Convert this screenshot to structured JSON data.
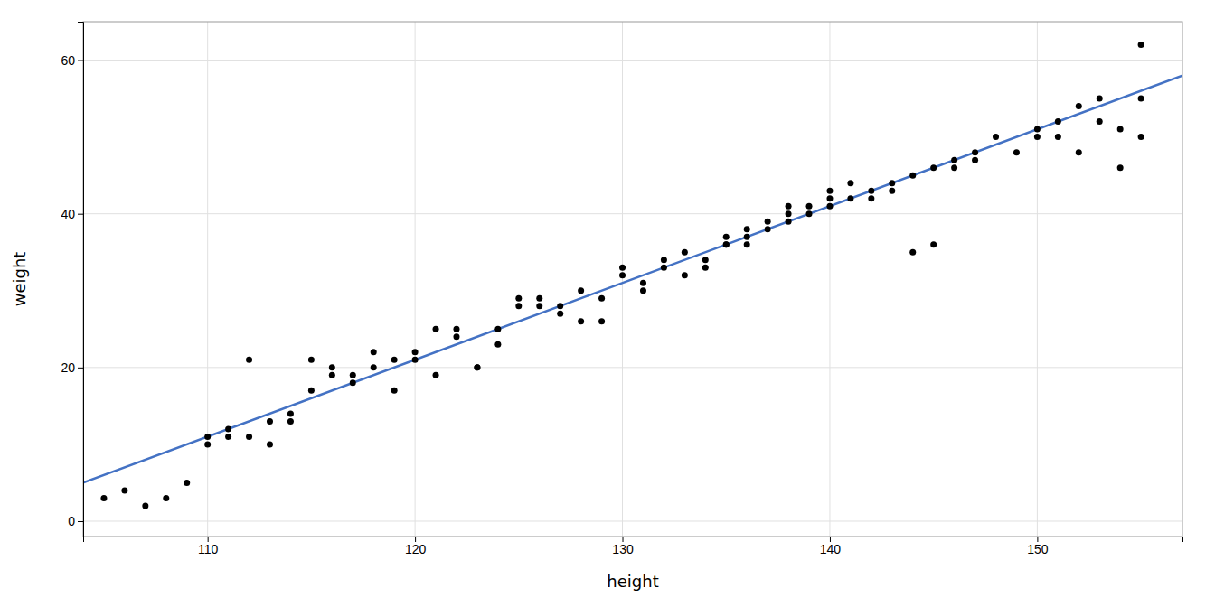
{
  "chart_data": {
    "type": "scatter",
    "xlabel": "height",
    "ylabel": "weight",
    "xlim": [
      104,
      157
    ],
    "ylim": [
      -2,
      65
    ],
    "xticks": [
      110,
      120,
      130,
      140,
      150
    ],
    "yticks": [
      0,
      20,
      40,
      60
    ],
    "grid": true,
    "series": [
      {
        "type": "scatter",
        "color": "#000000",
        "x": [
          105,
          106,
          107,
          108,
          109,
          110,
          110,
          111,
          111,
          112,
          112,
          113,
          113,
          114,
          114,
          115,
          115,
          116,
          116,
          117,
          117,
          118,
          118,
          119,
          119,
          120,
          120,
          121,
          121,
          122,
          122,
          123,
          123,
          124,
          124,
          125,
          125,
          126,
          126,
          127,
          127,
          128,
          128,
          129,
          129,
          130,
          130,
          131,
          131,
          132,
          132,
          133,
          133,
          134,
          134,
          135,
          135,
          135,
          136,
          136,
          136,
          137,
          137,
          138,
          138,
          138,
          139,
          139,
          140,
          140,
          140,
          141,
          141,
          142,
          142,
          143,
          143,
          144,
          144,
          145,
          145,
          146,
          146,
          147,
          147,
          148,
          149,
          150,
          150,
          151,
          151,
          152,
          152,
          153,
          153,
          154,
          154,
          155,
          155,
          155
        ],
        "values": [
          3,
          4,
          2,
          3,
          5,
          11,
          10,
          12,
          11,
          21,
          11,
          13,
          10,
          14,
          13,
          21,
          17,
          19,
          20,
          19,
          18,
          20,
          22,
          21,
          17,
          22,
          21,
          25,
          19,
          25,
          24,
          20,
          20,
          25,
          23,
          29,
          28,
          29,
          28,
          28,
          27,
          30,
          26,
          29,
          26,
          33,
          32,
          31,
          30,
          34,
          33,
          32,
          35,
          34,
          33,
          36,
          37,
          36,
          38,
          37,
          36,
          39,
          38,
          41,
          40,
          39,
          41,
          40,
          42,
          41,
          43,
          42,
          44,
          43,
          42,
          44,
          43,
          35,
          45,
          46,
          36,
          46,
          47,
          47,
          48,
          50,
          48,
          51,
          50,
          52,
          50,
          54,
          48,
          52,
          55,
          51,
          46,
          50,
          55,
          62
        ]
      },
      {
        "type": "line",
        "color": "#4472C4",
        "x": [
          104,
          157
        ],
        "values": [
          5,
          58
        ]
      }
    ]
  }
}
